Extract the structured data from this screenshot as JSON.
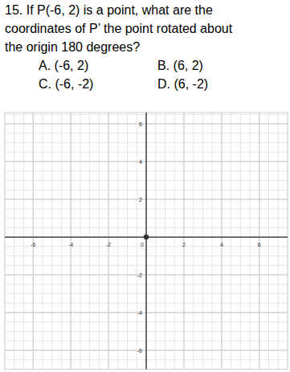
{
  "question": {
    "lines": [
      "15.  If P(-6, 2) is a point, what are the",
      "coordinates of P’ the point rotated about",
      "the origin 180 degrees?"
    ],
    "options": [
      "A. (-6, 2)",
      "B. (6, 2)",
      "C. (-6, -2)",
      "D. (6, -2)"
    ]
  },
  "chart_data": {
    "type": "scatter",
    "series": [
      {
        "x": [
          0
        ],
        "values": [
          0
        ],
        "color": "#333333",
        "marker": "circle"
      }
    ],
    "xlim": [
      -7.5,
      7.5
    ],
    "ylim": [
      -7,
      6.6
    ],
    "xticks": [
      -6,
      -4,
      -2,
      0,
      2,
      4,
      6
    ],
    "yticks": [
      -6,
      -4,
      -2,
      2,
      4,
      6
    ],
    "grid": true
  }
}
